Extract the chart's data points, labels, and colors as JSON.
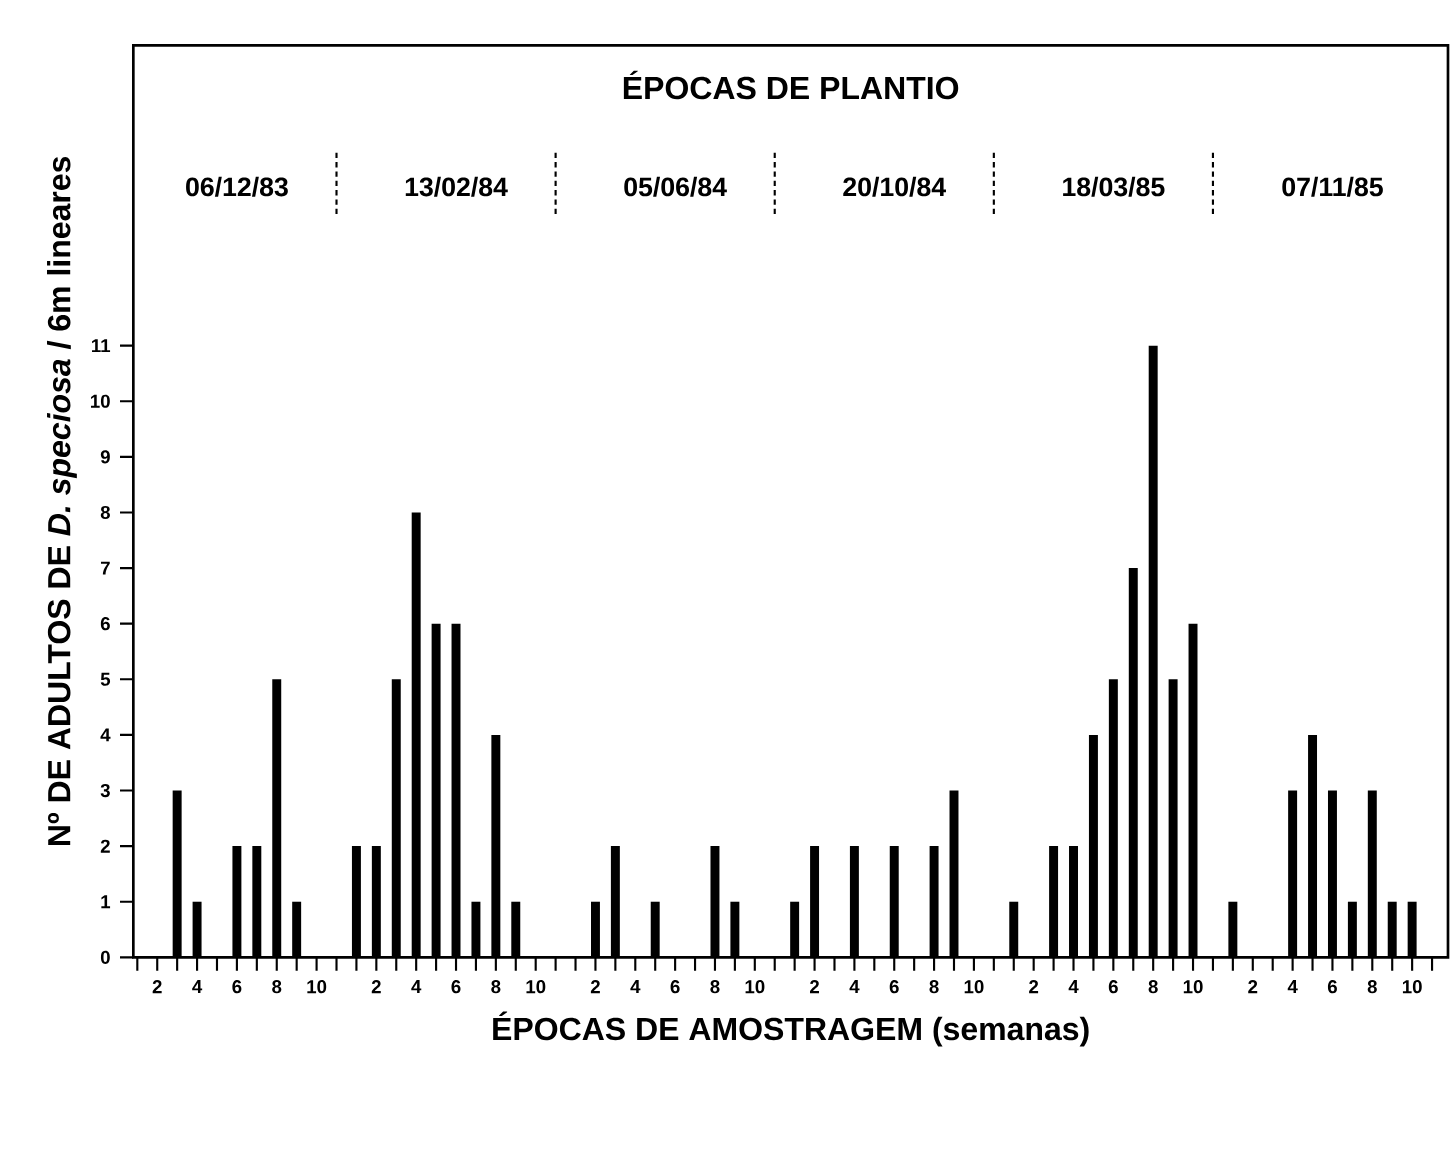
{
  "chart_data": {
    "type": "bar",
    "title": "ÉPOCAS DE PLANTIO",
    "xlabel": "ÉPOCAS DE AMOSTRAGEM (semanas)",
    "ylabel": "Nº DE ADULTOS DE *D. speciosa* / 6m lineares",
    "annotations": [
      "06/12/83",
      "13/02/84",
      "05/06/84",
      "20/10/84",
      "18/03/85",
      "07/11/85"
    ],
    "categories": [
      null,
      "2",
      null,
      "4",
      null,
      "6",
      null,
      "8",
      null,
      "10",
      null,
      null,
      "2",
      null,
      "4",
      null,
      "6",
      null,
      "8",
      null,
      "10",
      null,
      null,
      "2",
      null,
      "4",
      null,
      "6",
      null,
      "8",
      null,
      "10",
      null,
      null,
      "2",
      null,
      "4",
      null,
      "6",
      null,
      "8",
      null,
      "10",
      null,
      null,
      "2",
      null,
      "4",
      null,
      "6",
      null,
      "8",
      null,
      "10",
      null,
      null,
      "2",
      null,
      "4",
      null,
      "6",
      null,
      "8",
      null,
      "10",
      null
    ],
    "values": [
      null,
      null,
      3,
      1,
      null,
      2,
      2,
      5,
      1,
      null,
      null,
      2,
      2,
      5,
      8,
      6,
      6,
      1,
      4,
      1,
      null,
      null,
      null,
      1,
      2,
      null,
      1,
      null,
      null,
      2,
      1,
      null,
      null,
      1,
      2,
      null,
      2,
      null,
      2,
      null,
      2,
      3,
      null,
      null,
      1,
      null,
      2,
      2,
      4,
      5,
      7,
      11,
      5,
      6,
      null,
      1,
      null,
      null,
      3,
      4,
      3,
      1,
      3,
      1,
      1,
      null
    ],
    "color": "#000000",
    "ylim": [
      0,
      16.4
    ],
    "yticks": [
      0,
      1,
      2,
      3,
      4,
      5,
      6,
      7,
      8,
      9,
      10,
      11
    ]
  }
}
